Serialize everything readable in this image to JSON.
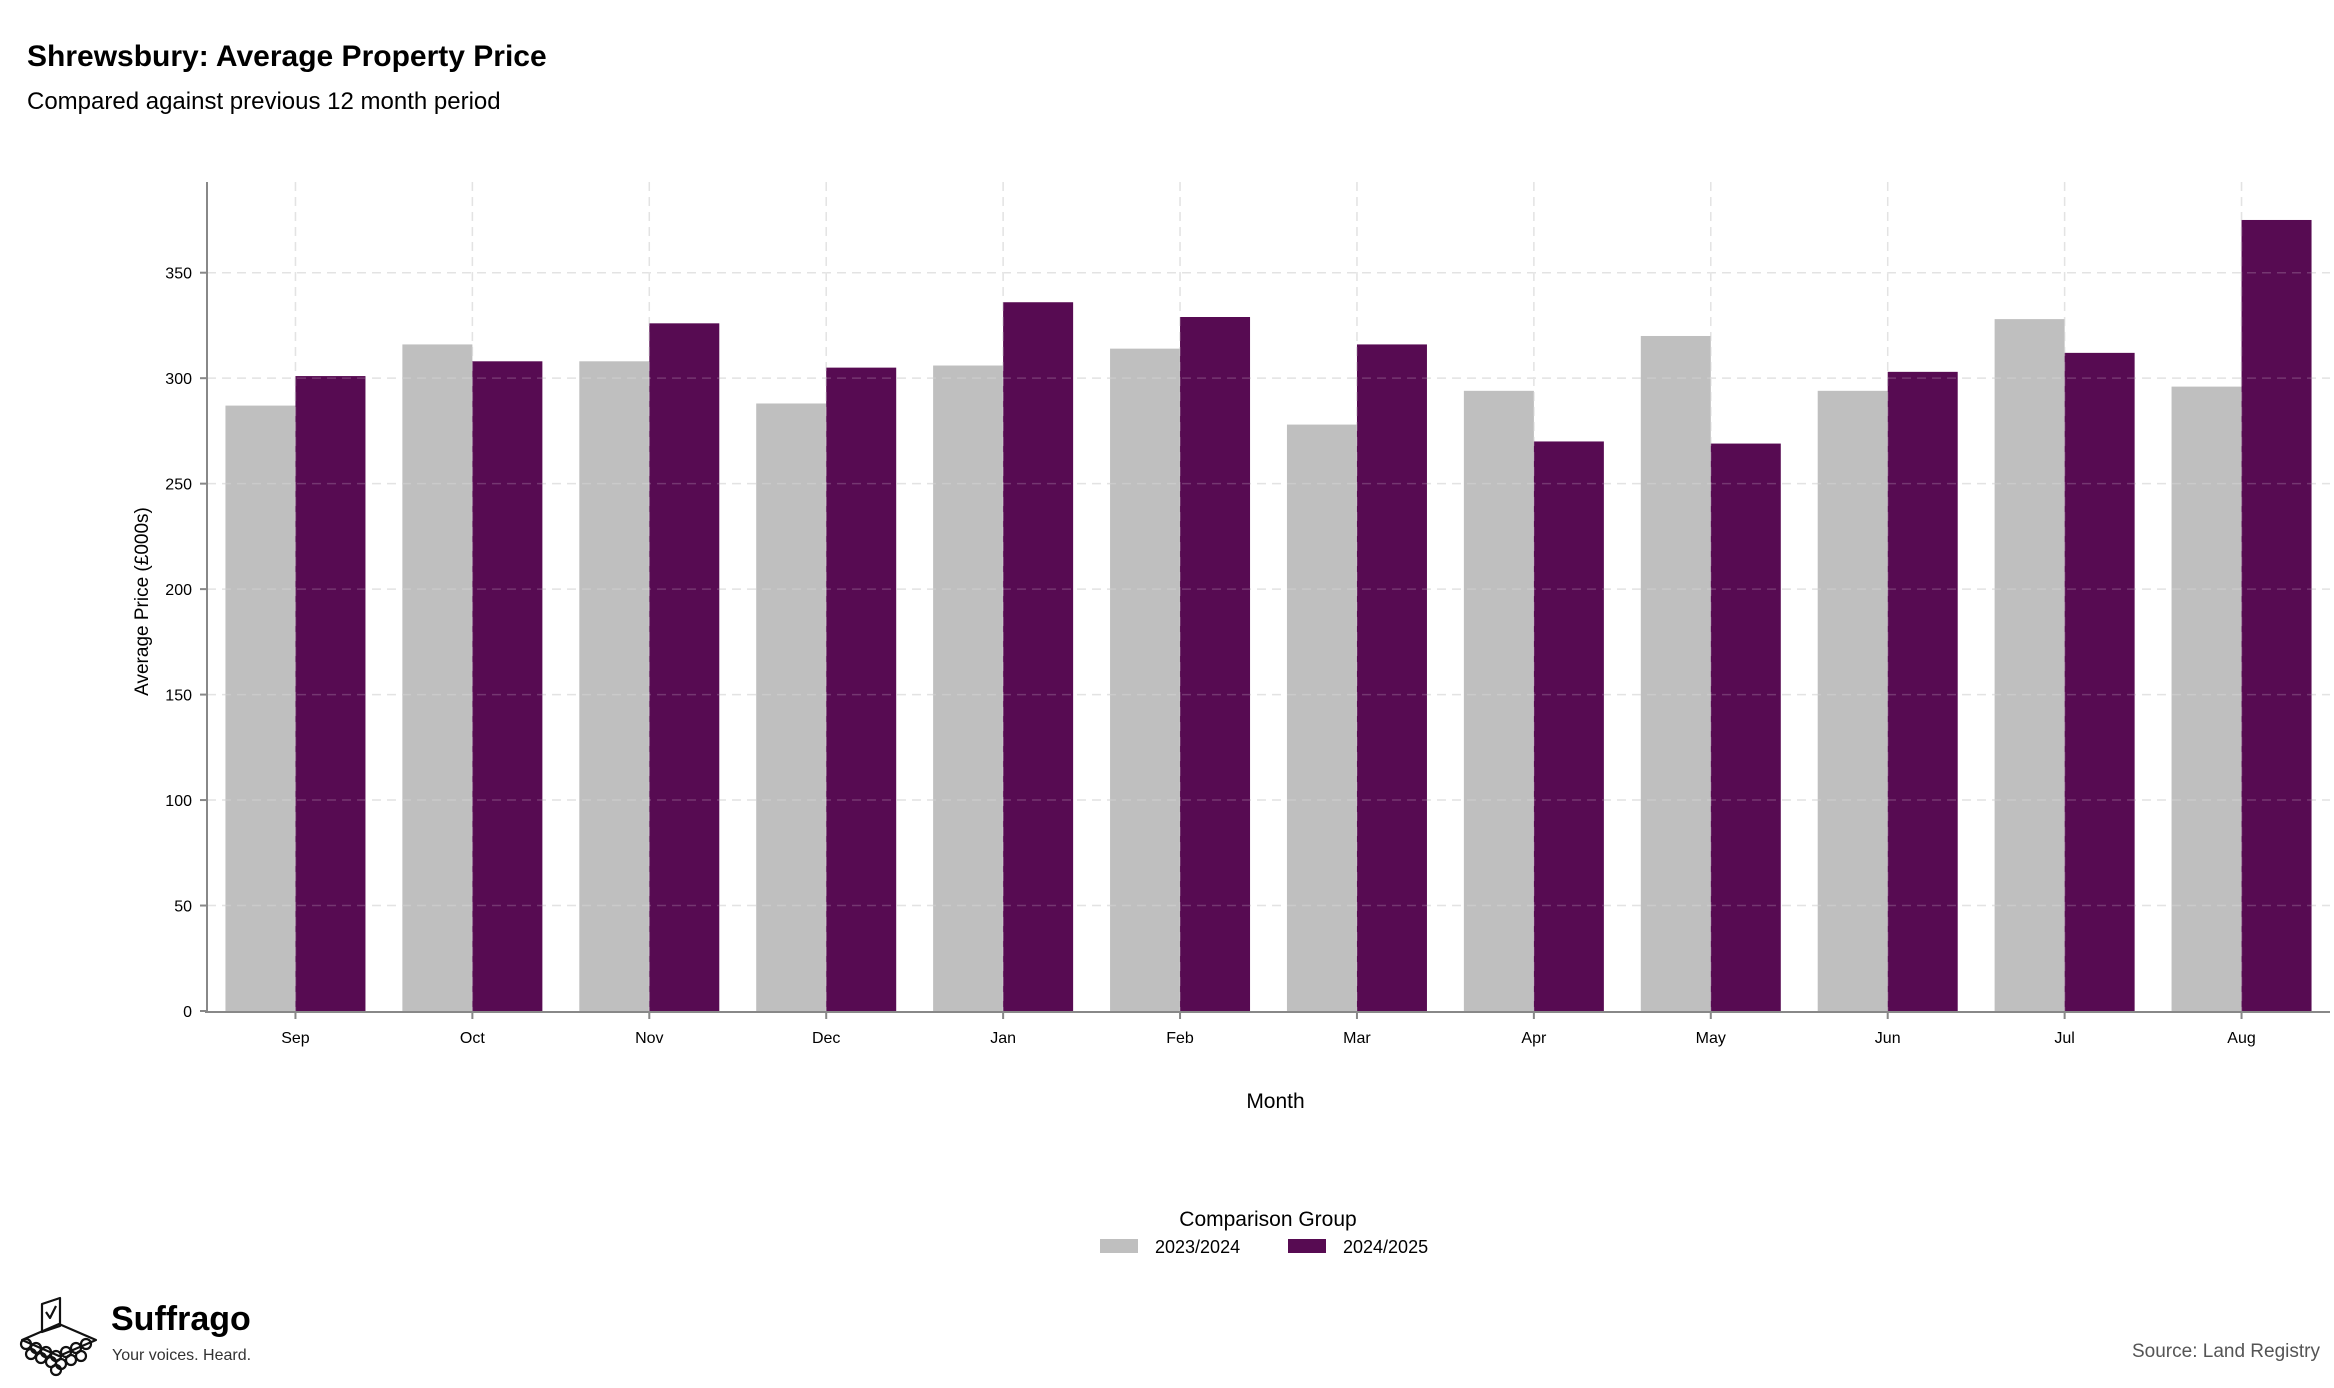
{
  "header": {
    "title": "Shrewsbury: Average Property Price",
    "subtitle": "Compared against previous 12 month period"
  },
  "chart_data": {
    "type": "bar",
    "title": "Shrewsbury: Average Property Price",
    "subtitle": "Compared against previous 12 month period",
    "xlabel": "Month",
    "ylabel": "Average Price (£000s)",
    "categories": [
      "Sep",
      "Oct",
      "Nov",
      "Dec",
      "Jan",
      "Feb",
      "Mar",
      "Apr",
      "May",
      "Jun",
      "Jul",
      "Aug"
    ],
    "ylim": [
      0,
      393
    ],
    "yticks": [
      0,
      50,
      100,
      150,
      200,
      250,
      300,
      350
    ],
    "grid": true,
    "legend": {
      "title": "Comparison Group",
      "placement": "bottom-center"
    },
    "series": [
      {
        "name": "2023/2024",
        "color": "#bfbfbf",
        "values": [
          287,
          316,
          308,
          288,
          306,
          314,
          278,
          294,
          320,
          294,
          328,
          296
        ]
      },
      {
        "name": "2024/2025",
        "color": "#570b52",
        "values": [
          301,
          308,
          326,
          305,
          336,
          329,
          316,
          270,
          269,
          303,
          312,
          375
        ]
      }
    ]
  },
  "branding": {
    "name": "Suffrago",
    "tagline": "Your voices. Heard.",
    "logo_icon": "ballot-box-icon"
  },
  "footer": {
    "source": "Source: Land Registry"
  }
}
